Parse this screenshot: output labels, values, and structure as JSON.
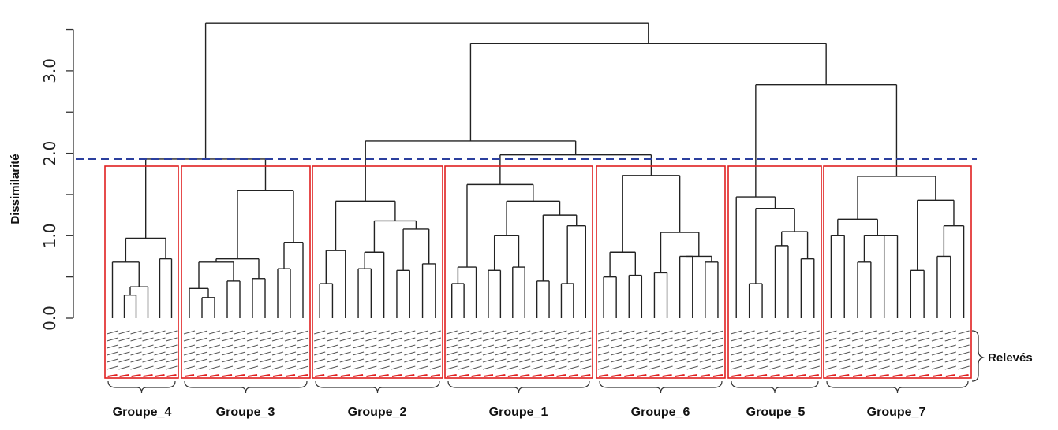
{
  "chart_data": {
    "type": "dendrogram",
    "ylabel": "Dissimilarité",
    "ylim": [
      0,
      3.6
    ],
    "yticks": [
      {
        "value": 0.0,
        "label": "0.0"
      },
      {
        "value": 1.0,
        "label": "1.0"
      },
      {
        "value": 2.0,
        "label": "2.0"
      },
      {
        "value": 3.0,
        "label": "3.0"
      }
    ],
    "cut_height": 1.93,
    "leaf_axis_label": "Relevés",
    "groups": [
      {
        "name": "Groupe_4",
        "leaves": 6
      },
      {
        "name": "Groupe_3",
        "leaves": 10
      },
      {
        "name": "Groupe_2",
        "leaves": 10
      },
      {
        "name": "Groupe_1",
        "leaves": 12
      },
      {
        "name": "Groupe_6",
        "leaves": 10
      },
      {
        "name": "Groupe_5",
        "leaves": 7
      },
      {
        "name": "Groupe_7",
        "leaves": 11
      }
    ],
    "merge_heights": [
      {
        "joins": "Groupe_2 + Groupe_1 + Groupe_6",
        "height": 2.15
      },
      {
        "joins": "Groupe_4 + Groupe_3",
        "height": 1.93
      },
      {
        "joins": "Groupe_5 + Groupe_7",
        "height": 2.83
      },
      {
        "joins": "Groupe_2/1/6 + Groupe_5/7",
        "height": 3.33
      },
      {
        "joins": "root",
        "height": 3.58
      }
    ],
    "colors": {
      "boxes": "#e02020",
      "cut_line": "#2b3f9e",
      "tree": "#222222"
    }
  }
}
